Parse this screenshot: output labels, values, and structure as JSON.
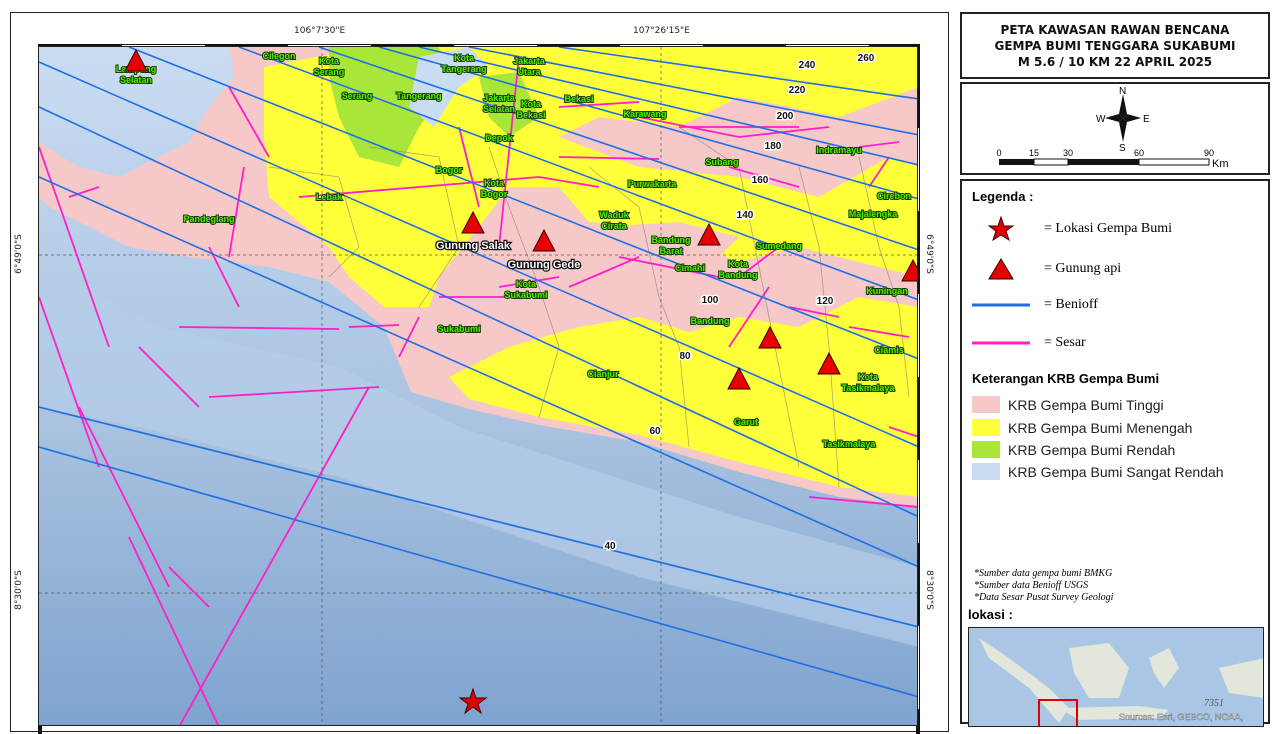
{
  "map": {
    "ticks": {
      "top": [
        "106°7'30\"E",
        "107°26'15\"E"
      ],
      "left": [
        "6°49'0\"S",
        "8°30'0\"S"
      ],
      "right": [
        "6°49'0\"S",
        "8°30'0\"S"
      ]
    },
    "place_labels": [
      "Lampung",
      "Selatan",
      "Cilegon",
      "Kota",
      "Serang",
      "Serang",
      "Tangerang",
      "Kota",
      "Tangerang",
      "Jakarta",
      "Utara",
      "Jakarta",
      "Selatan",
      "Kota",
      "Bekasi",
      "Bekasi",
      "Karawang",
      "Depok",
      "Bogor",
      "Kota",
      "Bogor",
      "Lebak",
      "Pandeglang",
      "Purwakarta",
      "Subang",
      "Indramayu",
      "Cirebon",
      "Majalengka",
      "Sumedang",
      "Waduk",
      "Cirata",
      "Bandung",
      "Barat",
      "Cimahi",
      "Kota",
      "Bandung",
      "Bandung",
      "Kuningan",
      "Ciamis",
      "Kota",
      "Tasikmalaya",
      "Tasikmalaya",
      "Garut",
      "Cianjur",
      "Sukabumi",
      "Kota",
      "Sukabumi"
    ],
    "volcano_labels": [
      "Gunung Salak",
      "Gunung Gede"
    ],
    "benioff_depths": [
      "260",
      "240",
      "220",
      "200",
      "180",
      "160",
      "140",
      "120",
      "100",
      "80",
      "60",
      "40"
    ],
    "colors": {
      "krb_tinggi": "#f6c8c8",
      "krb_menengah": "#ffff3a",
      "krb_rendah": "#a8e63a",
      "krb_sangat_rendah": "#c9dcf2",
      "sea": "#a9c3e0",
      "benioff": "#1e6ee6",
      "sesar": "#ff1fc8",
      "volcano": "#e80000"
    }
  },
  "title": {
    "line1": "PETA KAWASAN RAWAN BENCANA",
    "line2": "GEMPA BUMI TENGGARA SUKABUMI",
    "line3": "M 5.6 / 10 KM  22 APRIL 2025"
  },
  "compass": {
    "n": "N",
    "s": "S",
    "e": "E",
    "w": "W"
  },
  "scalebar": {
    "ticks": [
      "0",
      "15",
      "30",
      "60",
      "90"
    ],
    "unit": "Km"
  },
  "legend": {
    "title": "Legenda :",
    "items": [
      {
        "icon": "star-icon",
        "label": "= Lokasi Gempa Bumi"
      },
      {
        "icon": "triangle-icon",
        "label": "= Gunung api"
      },
      {
        "icon": "blue-line-icon",
        "label": "= Benioff"
      },
      {
        "icon": "magenta-line-icon",
        "label": "= Sesar"
      }
    ],
    "krb_title": "Keterangan KRB Gempa Bumi",
    "krb": [
      {
        "label": "KRB Gempa Bumi Tinggi",
        "color": "#f6c8c8"
      },
      {
        "label": "KRB Gempa Bumi  Menengah",
        "color": "#ffff3a"
      },
      {
        "label": "KRB Gempa Bumi Rendah",
        "color": "#a8e63a"
      },
      {
        "label": "KRB Gempa Bumi Sangat Rendah",
        "color": "#c9dcf2"
      }
    ],
    "notes": [
      "*Sumber data gempa bumi BMKG",
      "*Sumber data Benioff USGS",
      "*Data Sesar Pusat Survey Geologi"
    ],
    "lokasi_title": "lokasi :",
    "minimap_number": "7351",
    "minimap_sources": "Sources: Esri, GEBCO, NOAA,"
  }
}
